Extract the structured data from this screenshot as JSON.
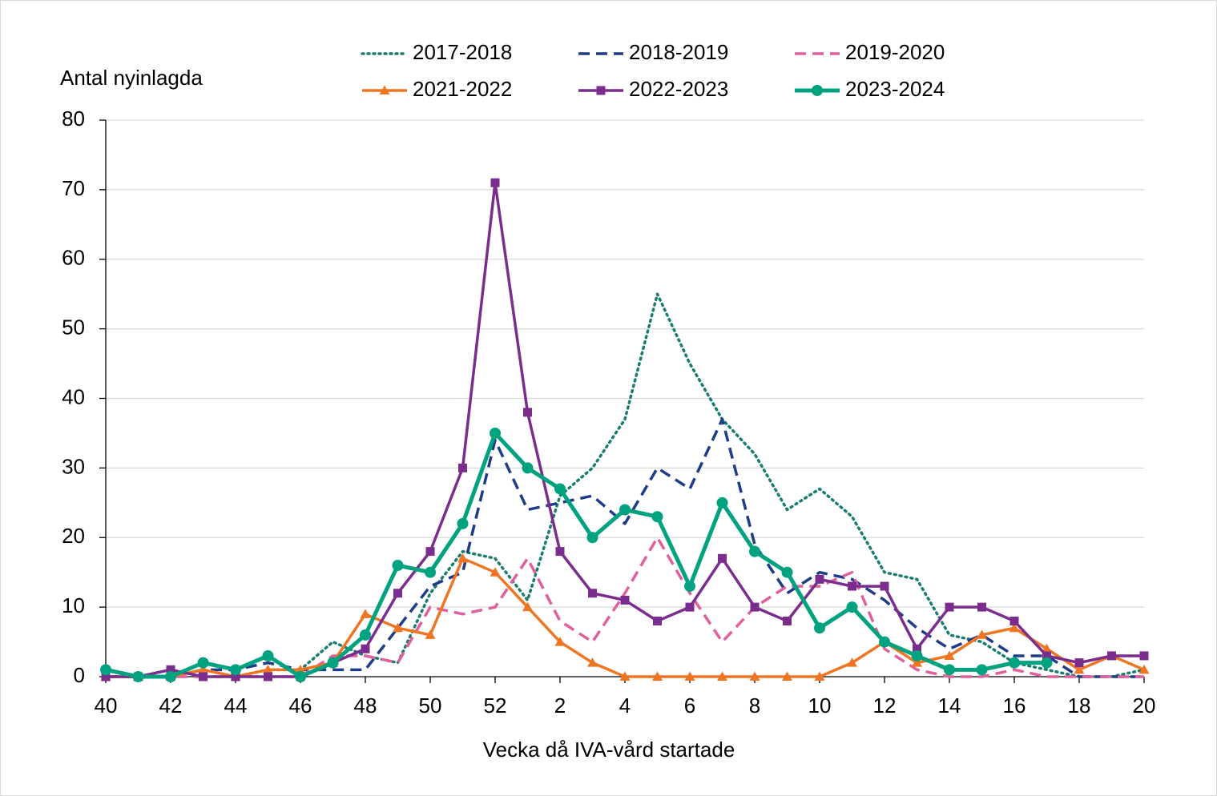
{
  "chart_data": {
    "type": "line",
    "y_label": "Antal nyinlagda",
    "x_label": "Vecka då IVA-vård startade",
    "categories": [
      40,
      null,
      42,
      null,
      44,
      null,
      46,
      null,
      48,
      null,
      50,
      null,
      52,
      null,
      2,
      null,
      4,
      null,
      6,
      null,
      8,
      null,
      10,
      null,
      12,
      null,
      14,
      null,
      16,
      null,
      18,
      null,
      20
    ],
    "ylim": [
      0,
      80
    ],
    "yticks": [
      0,
      10,
      20,
      30,
      40,
      50,
      60,
      70,
      80
    ],
    "grid": true,
    "series": [
      {
        "name": "2017-2018",
        "color": "#1a7d6f",
        "dash": "dotted",
        "marker": "none",
        "values": [
          0,
          0,
          0,
          1,
          0,
          1,
          1,
          5,
          3,
          2,
          12,
          18,
          17,
          11,
          26,
          30,
          37,
          55,
          45,
          37,
          32,
          24,
          27,
          23,
          15,
          14,
          6,
          5,
          2,
          1,
          0,
          0,
          1
        ]
      },
      {
        "name": "2018-2019",
        "color": "#1f3c88",
        "dash": "dashed",
        "marker": "none",
        "values": [
          0,
          0,
          0,
          1,
          1,
          2,
          1,
          1,
          1,
          7,
          13,
          15,
          34,
          24,
          25,
          26,
          22,
          30,
          27,
          37,
          19,
          12,
          15,
          14,
          11,
          7,
          4,
          6,
          3,
          3,
          0,
          0,
          0
        ]
      },
      {
        "name": "2019-2020",
        "color": "#e0609f",
        "dash": "dashed",
        "marker": "none",
        "values": [
          0,
          0,
          0,
          0,
          0,
          0,
          0,
          3,
          3,
          2,
          10,
          9,
          10,
          17,
          8,
          5,
          12,
          20,
          12,
          5,
          10,
          13,
          13,
          15,
          4,
          1,
          0,
          0,
          1,
          0,
          0,
          0,
          0
        ]
      },
      {
        "name": "2021-2022",
        "color": "#ee7623",
        "dash": "solid",
        "marker": "triangle",
        "values": [
          0,
          0,
          0,
          1,
          0,
          1,
          1,
          2,
          9,
          7,
          6,
          17,
          15,
          10,
          5,
          2,
          0,
          0,
          0,
          0,
          0,
          0,
          0,
          2,
          5,
          2,
          3,
          6,
          7,
          4,
          1,
          3,
          1
        ]
      },
      {
        "name": "2022-2023",
        "color": "#7b2d8e",
        "dash": "solid",
        "marker": "square",
        "values": [
          0,
          0,
          1,
          0,
          0,
          0,
          0,
          2,
          4,
          12,
          18,
          30,
          71,
          38,
          18,
          12,
          11,
          8,
          10,
          17,
          10,
          8,
          14,
          13,
          13,
          4,
          10,
          10,
          8,
          3,
          2,
          3,
          3
        ]
      },
      {
        "name": "2023-2024",
        "color": "#00a27f",
        "dash": "solid",
        "marker": "circle",
        "values": [
          1,
          0,
          0,
          2,
          1,
          3,
          0,
          2,
          6,
          16,
          15,
          22,
          35,
          30,
          27,
          20,
          24,
          23,
          13,
          25,
          18,
          15,
          7,
          10,
          5,
          3,
          1,
          1,
          2,
          2,
          null,
          null,
          null
        ]
      }
    ]
  }
}
